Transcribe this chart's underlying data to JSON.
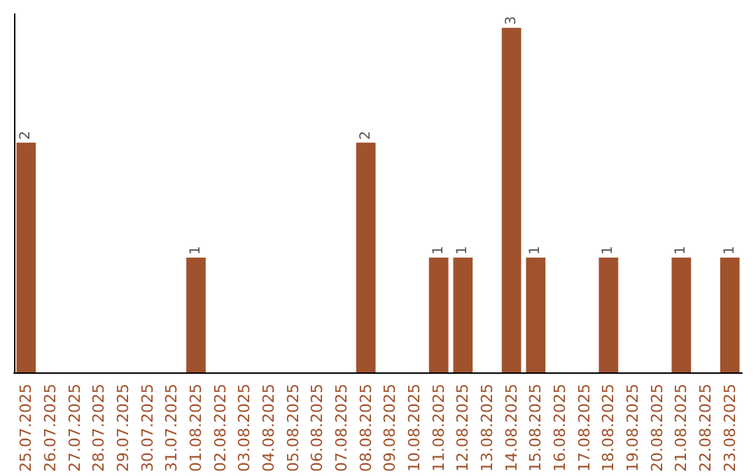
{
  "chart_data": {
    "type": "bar",
    "categories": [
      "25.07.2025",
      "26.07.2025",
      "27.07.2025",
      "28.07.2025",
      "29.07.2025",
      "30.07.2025",
      "31.07.2025",
      "01.08.2025",
      "02.08.2025",
      "03.08.2025",
      "04.08.2025",
      "05.08.2025",
      "06.08.2025",
      "07.08.2025",
      "08.08.2025",
      "09.08.2025",
      "10.08.2025",
      "11.08.2025",
      "12.08.2025",
      "13.08.2025",
      "14.08.2025",
      "15.08.2025",
      "16.08.2025",
      "17.08.2025",
      "18.08.2025",
      "19.08.2025",
      "20.08.2025",
      "21.08.2025",
      "22.08.2025",
      "23.08.2025"
    ],
    "values": [
      2,
      0,
      0,
      0,
      0,
      0,
      0,
      1,
      0,
      0,
      0,
      0,
      0,
      0,
      2,
      0,
      0,
      1,
      1,
      0,
      3,
      1,
      0,
      0,
      1,
      0,
      0,
      1,
      0,
      1
    ],
    "value_labels": [
      "2",
      null,
      null,
      null,
      null,
      null,
      null,
      "1",
      null,
      null,
      null,
      null,
      null,
      null,
      "2",
      null,
      null,
      "1",
      "1",
      null,
      "3",
      "1",
      null,
      null,
      "1",
      null,
      null,
      "1",
      null,
      "1"
    ],
    "color": "#a0522d",
    "tick_labels": "x",
    "grid": false
  }
}
